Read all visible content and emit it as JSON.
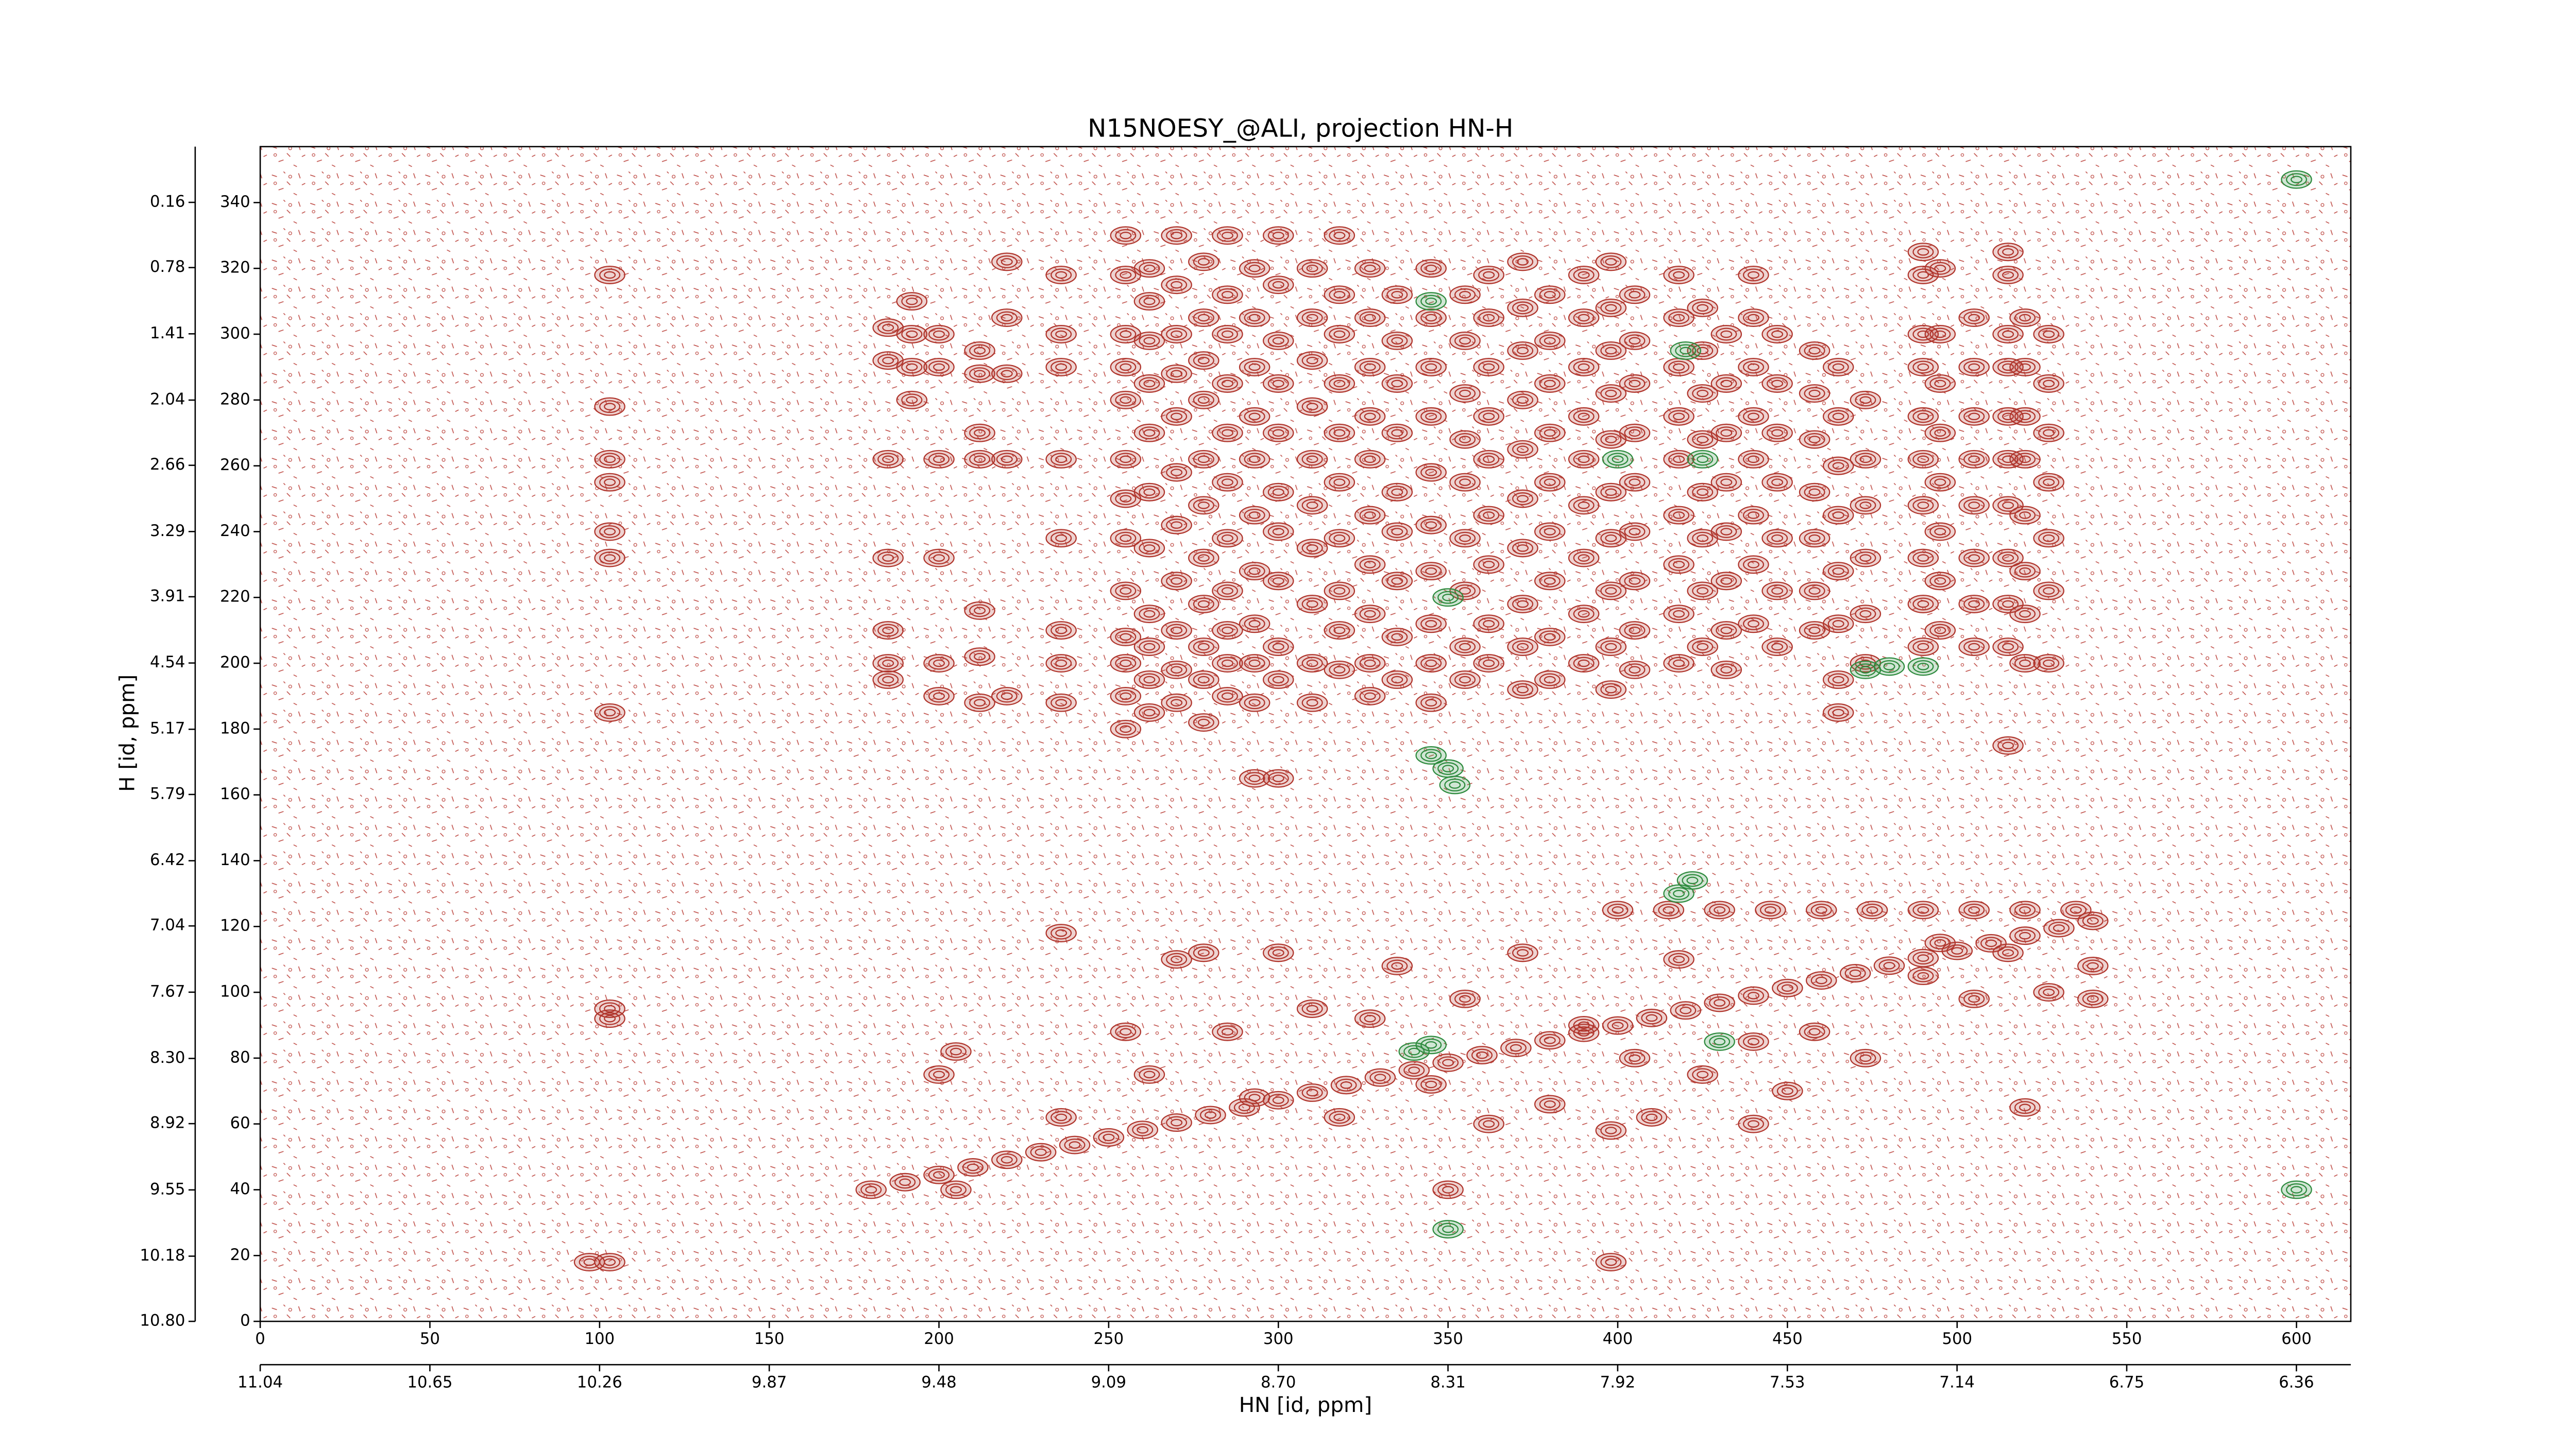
{
  "chart_data": {
    "type": "contour",
    "title": "N15NOESY_@ALI, projection HN-H",
    "xlabel": "HN [id, ppm]",
    "ylabel": "H [id, ppm]",
    "xlim": [
      0,
      616
    ],
    "xticks": [
      0,
      50,
      100,
      150,
      200,
      250,
      300,
      350,
      400,
      450,
      500,
      550,
      600
    ],
    "x2lim": [
      11.04,
      6.235
    ],
    "x2ticks": [
      11.04,
      10.65,
      10.26,
      9.87,
      9.48,
      9.09,
      {
        "value": 8.7,
        "label": "8.70"
      },
      8.31,
      7.92,
      7.53,
      7.14,
      6.75,
      6.36
    ],
    "ylim": [
      0,
      357
    ],
    "yticks": [
      0,
      20,
      40,
      60,
      80,
      100,
      120,
      140,
      160,
      180,
      200,
      220,
      240,
      260,
      280,
      300,
      320,
      340
    ],
    "y2lim": [
      10.8,
      -0.37
    ],
    "y2ticks": [
      {
        "value": 10.8,
        "label": "10.80"
      },
      10.18,
      9.55,
      8.92,
      {
        "value": 8.3,
        "label": "8.30"
      },
      7.67,
      7.04,
      6.42,
      5.79,
      5.17,
      4.54,
      3.91,
      3.29,
      2.66,
      2.04,
      1.41,
      0.78,
      0.16
    ],
    "color": "#b0352c",
    "negative_color": "#2e8b3e",
    "peaks": [
      {
        "x": 103,
        "y": [
          318,
          278,
          262,
          255,
          240,
          232,
          185,
          95,
          92,
          18
        ]
      },
      {
        "x": 97,
        "y": [
          18
        ]
      },
      {
        "x": 185,
        "y": [
          302,
          292,
          262,
          232,
          210,
          200,
          195
        ]
      },
      {
        "x": 192,
        "y": [
          310,
          300,
          290,
          280
        ]
      },
      {
        "x": 200,
        "y": [
          300,
          290,
          262,
          232,
          200,
          190
        ]
      },
      {
        "x": 212,
        "y": [
          295,
          288,
          270,
          262,
          216,
          202,
          188
        ]
      },
      {
        "x": 220,
        "y": [
          322,
          305,
          288,
          262,
          190
        ]
      },
      {
        "x": 236,
        "y": [
          318,
          300,
          290,
          262,
          238,
          210,
          200,
          188
        ]
      },
      {
        "x": 255,
        "y": [
          330,
          318,
          300,
          290,
          280,
          262,
          250,
          238,
          222,
          208,
          200,
          190,
          180
        ]
      },
      {
        "x": 262,
        "y": [
          320,
          310,
          298,
          285,
          270,
          252,
          235,
          215,
          205,
          195,
          185
        ]
      },
      {
        "x": 270,
        "y": [
          330,
          315,
          300,
          288,
          275,
          258,
          242,
          225,
          210,
          198,
          188
        ]
      },
      {
        "x": 278,
        "y": [
          322,
          305,
          292,
          280,
          262,
          248,
          232,
          218,
          205,
          195,
          182
        ]
      },
      {
        "x": 285,
        "y": [
          330,
          312,
          300,
          285,
          270,
          255,
          238,
          222,
          210,
          200,
          190
        ]
      },
      {
        "x": 293,
        "y": [
          320,
          305,
          290,
          275,
          262,
          245,
          228,
          212,
          200,
          188,
          165
        ]
      },
      {
        "x": 300,
        "y": [
          330,
          315,
          298,
          285,
          270,
          252,
          240,
          225,
          205,
          195,
          165
        ]
      },
      {
        "x": 310,
        "y": [
          320,
          305,
          292,
          278,
          262,
          248,
          235,
          218,
          200,
          188
        ]
      },
      {
        "x": 318,
        "y": [
          330,
          312,
          300,
          285,
          270,
          255,
          238,
          222,
          210,
          198
        ]
      },
      {
        "x": 327,
        "y": [
          320,
          305,
          290,
          275,
          262,
          245,
          230,
          215,
          200,
          190
        ]
      },
      {
        "x": 335,
        "y": [
          312,
          298,
          285,
          270,
          252,
          240,
          225,
          208,
          195
        ]
      },
      {
        "x": 345,
        "y": [
          320,
          305,
          290,
          275,
          258,
          242,
          228,
          212,
          200,
          188
        ]
      },
      {
        "x": 355,
        "y": [
          312,
          298,
          282,
          268,
          255,
          238,
          222,
          205,
          195
        ]
      },
      {
        "x": 362,
        "y": [
          318,
          305,
          290,
          275,
          262,
          245,
          230,
          212,
          200
        ]
      },
      {
        "x": 372,
        "y": [
          322,
          308,
          295,
          280,
          265,
          250,
          235,
          218,
          205,
          192
        ]
      },
      {
        "x": 380,
        "y": [
          312,
          298,
          285,
          270,
          255,
          240,
          225,
          208,
          195
        ]
      },
      {
        "x": 390,
        "y": [
          318,
          305,
          290,
          275,
          262,
          248,
          232,
          215,
          200
        ]
      },
      {
        "x": 398,
        "y": [
          322,
          308,
          295,
          282,
          268,
          252,
          238,
          222,
          205,
          192
        ]
      },
      {
        "x": 405,
        "y": [
          312,
          298,
          285,
          270,
          255,
          240,
          225,
          210,
          198
        ]
      },
      {
        "x": 418,
        "y": [
          318,
          305,
          290,
          275,
          262,
          245,
          230,
          215,
          200
        ]
      },
      {
        "x": 425,
        "y": [
          308,
          295,
          282,
          268,
          252,
          238,
          222,
          205
        ]
      },
      {
        "x": 432,
        "y": [
          300,
          285,
          270,
          255,
          240,
          225,
          210,
          198
        ]
      },
      {
        "x": 440,
        "y": [
          318,
          305,
          290,
          275,
          262,
          245,
          230,
          212
        ]
      },
      {
        "x": 447,
        "y": [
          300,
          285,
          270,
          255,
          238,
          222,
          205
        ]
      },
      {
        "x": 458,
        "y": [
          295,
          282,
          268,
          252,
          238,
          222,
          210
        ]
      },
      {
        "x": 465,
        "y": [
          290,
          275,
          260,
          245,
          228,
          212,
          195,
          185
        ]
      },
      {
        "x": 473,
        "y": [
          280,
          262,
          248,
          232,
          215,
          200
        ]
      },
      {
        "x": 490,
        "y": [
          325,
          318,
          300,
          290,
          275,
          262,
          248,
          232,
          218,
          205
        ]
      },
      {
        "x": 495,
        "y": [
          320,
          300,
          285,
          270,
          255,
          240,
          225,
          210
        ]
      },
      {
        "x": 505,
        "y": [
          305,
          290,
          275,
          262,
          248,
          232,
          218,
          205
        ]
      },
      {
        "x": 515,
        "y": [
          325,
          318,
          300,
          290,
          275,
          262,
          248,
          232,
          218,
          205,
          175
        ]
      },
      {
        "x": 520,
        "y": [
          305,
          290,
          275,
          262,
          245,
          228,
          215,
          200
        ]
      },
      {
        "x": 527,
        "y": [
          300,
          285,
          270,
          255,
          238,
          222,
          200
        ]
      },
      {
        "x": 180,
        "y": [
          40
        ]
      },
      {
        "x": 190,
        "y": [
          42.3
        ]
      },
      {
        "x": 200,
        "y": [
          44.5
        ]
      },
      {
        "x": 210,
        "y": [
          46.8
        ]
      },
      {
        "x": 220,
        "y": [
          49.1
        ]
      },
      {
        "x": 230,
        "y": [
          51.4
        ]
      },
      {
        "x": 240,
        "y": [
          53.6
        ]
      },
      {
        "x": 250,
        "y": [
          55.9
        ]
      },
      {
        "x": 260,
        "y": [
          58.2
        ]
      },
      {
        "x": 270,
        "y": [
          60.4
        ]
      },
      {
        "x": 280,
        "y": [
          62.7
        ]
      },
      {
        "x": 290,
        "y": [
          65
        ]
      },
      {
        "x": 300,
        "y": [
          67.2
        ]
      },
      {
        "x": 310,
        "y": [
          69.5
        ]
      },
      {
        "x": 320,
        "y": [
          71.8
        ]
      },
      {
        "x": 330,
        "y": [
          74.1
        ]
      },
      {
        "x": 340,
        "y": [
          76.3
        ]
      },
      {
        "x": 350,
        "y": [
          78.6
        ]
      },
      {
        "x": 360,
        "y": [
          80.9
        ]
      },
      {
        "x": 370,
        "y": [
          83.1
        ]
      },
      {
        "x": 380,
        "y": [
          85.4
        ]
      },
      {
        "x": 390,
        "y": [
          87.7
        ]
      },
      {
        "x": 400,
        "y": [
          89.9
        ]
      },
      {
        "x": 410,
        "y": [
          92.2
        ]
      },
      {
        "x": 420,
        "y": [
          94.5
        ]
      },
      {
        "x": 430,
        "y": [
          96.8
        ]
      },
      {
        "x": 440,
        "y": [
          99
        ]
      },
      {
        "x": 450,
        "y": [
          101.3
        ]
      },
      {
        "x": 460,
        "y": [
          103.6
        ]
      },
      {
        "x": 470,
        "y": [
          105.8
        ]
      },
      {
        "x": 480,
        "y": [
          108.1
        ]
      },
      {
        "x": 490,
        "y": [
          110.4
        ]
      },
      {
        "x": 500,
        "y": [
          112.6
        ]
      },
      {
        "x": 510,
        "y": [
          114.9
        ]
      },
      {
        "x": 520,
        "y": [
          117.2
        ]
      },
      {
        "x": 530,
        "y": [
          119.5
        ]
      },
      {
        "x": 540,
        "y": [
          121.7
        ]
      },
      {
        "x": 205,
        "y": [
          40,
          82
        ]
      },
      {
        "x": 200,
        "y": [
          75
        ]
      },
      {
        "x": 236,
        "y": [
          62,
          118
        ]
      },
      {
        "x": 255,
        "y": [
          88
        ]
      },
      {
        "x": 262,
        "y": [
          75
        ]
      },
      {
        "x": 270,
        "y": [
          110
        ]
      },
      {
        "x": 278,
        "y": [
          112
        ]
      },
      {
        "x": 285,
        "y": [
          88
        ]
      },
      {
        "x": 293,
        "y": [
          68
        ]
      },
      {
        "x": 300,
        "y": [
          112
        ]
      },
      {
        "x": 310,
        "y": [
          95
        ]
      },
      {
        "x": 318,
        "y": [
          62
        ]
      },
      {
        "x": 327,
        "y": [
          92
        ]
      },
      {
        "x": 335,
        "y": [
          108
        ]
      },
      {
        "x": 345,
        "y": [
          72
        ]
      },
      {
        "x": 350,
        "y": [
          40
        ]
      },
      {
        "x": 355,
        "y": [
          98
        ]
      },
      {
        "x": 362,
        "y": [
          60
        ]
      },
      {
        "x": 372,
        "y": [
          112
        ]
      },
      {
        "x": 380,
        "y": [
          66
        ]
      },
      {
        "x": 390,
        "y": [
          90
        ]
      },
      {
        "x": 398,
        "y": [
          58,
          18
        ]
      },
      {
        "x": 405,
        "y": [
          80
        ]
      },
      {
        "x": 410,
        "y": [
          62
        ]
      },
      {
        "x": 418,
        "y": [
          110
        ]
      },
      {
        "x": 425,
        "y": [
          75
        ]
      },
      {
        "x": 440,
        "y": [
          60,
          85
        ]
      },
      {
        "x": 450,
        "y": [
          70
        ]
      },
      {
        "x": 458,
        "y": [
          88
        ]
      },
      {
        "x": 473,
        "y": [
          80
        ]
      },
      {
        "x": 490,
        "y": [
          105
        ]
      },
      {
        "x": 495,
        "y": [
          115
        ]
      },
      {
        "x": 505,
        "y": [
          98
        ]
      },
      {
        "x": 515,
        "y": [
          112
        ]
      },
      {
        "x": 520,
        "y": [
          65
        ]
      },
      {
        "x": 527,
        "y": [
          100
        ]
      },
      {
        "x": 540,
        "y": [
          108,
          98
        ]
      },
      {
        "x": 400,
        "y": [
          125
        ]
      },
      {
        "x": 415,
        "y": [
          125
        ]
      },
      {
        "x": 430,
        "y": [
          125
        ]
      },
      {
        "x": 445,
        "y": [
          125
        ]
      },
      {
        "x": 460,
        "y": [
          125
        ]
      },
      {
        "x": 475,
        "y": [
          125
        ]
      },
      {
        "x": 490,
        "y": [
          125
        ]
      },
      {
        "x": 505,
        "y": [
          125
        ]
      },
      {
        "x": 520,
        "y": [
          125
        ]
      },
      {
        "x": 535,
        "y": [
          125
        ]
      }
    ],
    "negative_peaks": [
      {
        "x": 345,
        "y": [
          172
        ]
      },
      {
        "x": 350,
        "y": [
          168,
          28
        ]
      },
      {
        "x": 352,
        "y": [
          163
        ]
      },
      {
        "x": 473,
        "y": [
          198
        ]
      },
      {
        "x": 480,
        "y": [
          199
        ]
      },
      {
        "x": 490,
        "y": [
          199
        ]
      },
      {
        "x": 418,
        "y": [
          130
        ]
      },
      {
        "x": 422,
        "y": [
          134
        ]
      },
      {
        "x": 600,
        "y": [
          347,
          40
        ]
      },
      {
        "x": 340,
        "y": [
          82
        ]
      },
      {
        "x": 345,
        "y": [
          84
        ]
      },
      {
        "x": 430,
        "y": [
          85
        ]
      },
      {
        "x": 400,
        "y": [
          262
        ]
      },
      {
        "x": 425,
        "y": [
          262
        ]
      },
      {
        "x": 420,
        "y": [
          295
        ]
      },
      {
        "x": 345,
        "y": [
          310
        ]
      },
      {
        "x": 350,
        "y": [
          220
        ]
      }
    ]
  }
}
